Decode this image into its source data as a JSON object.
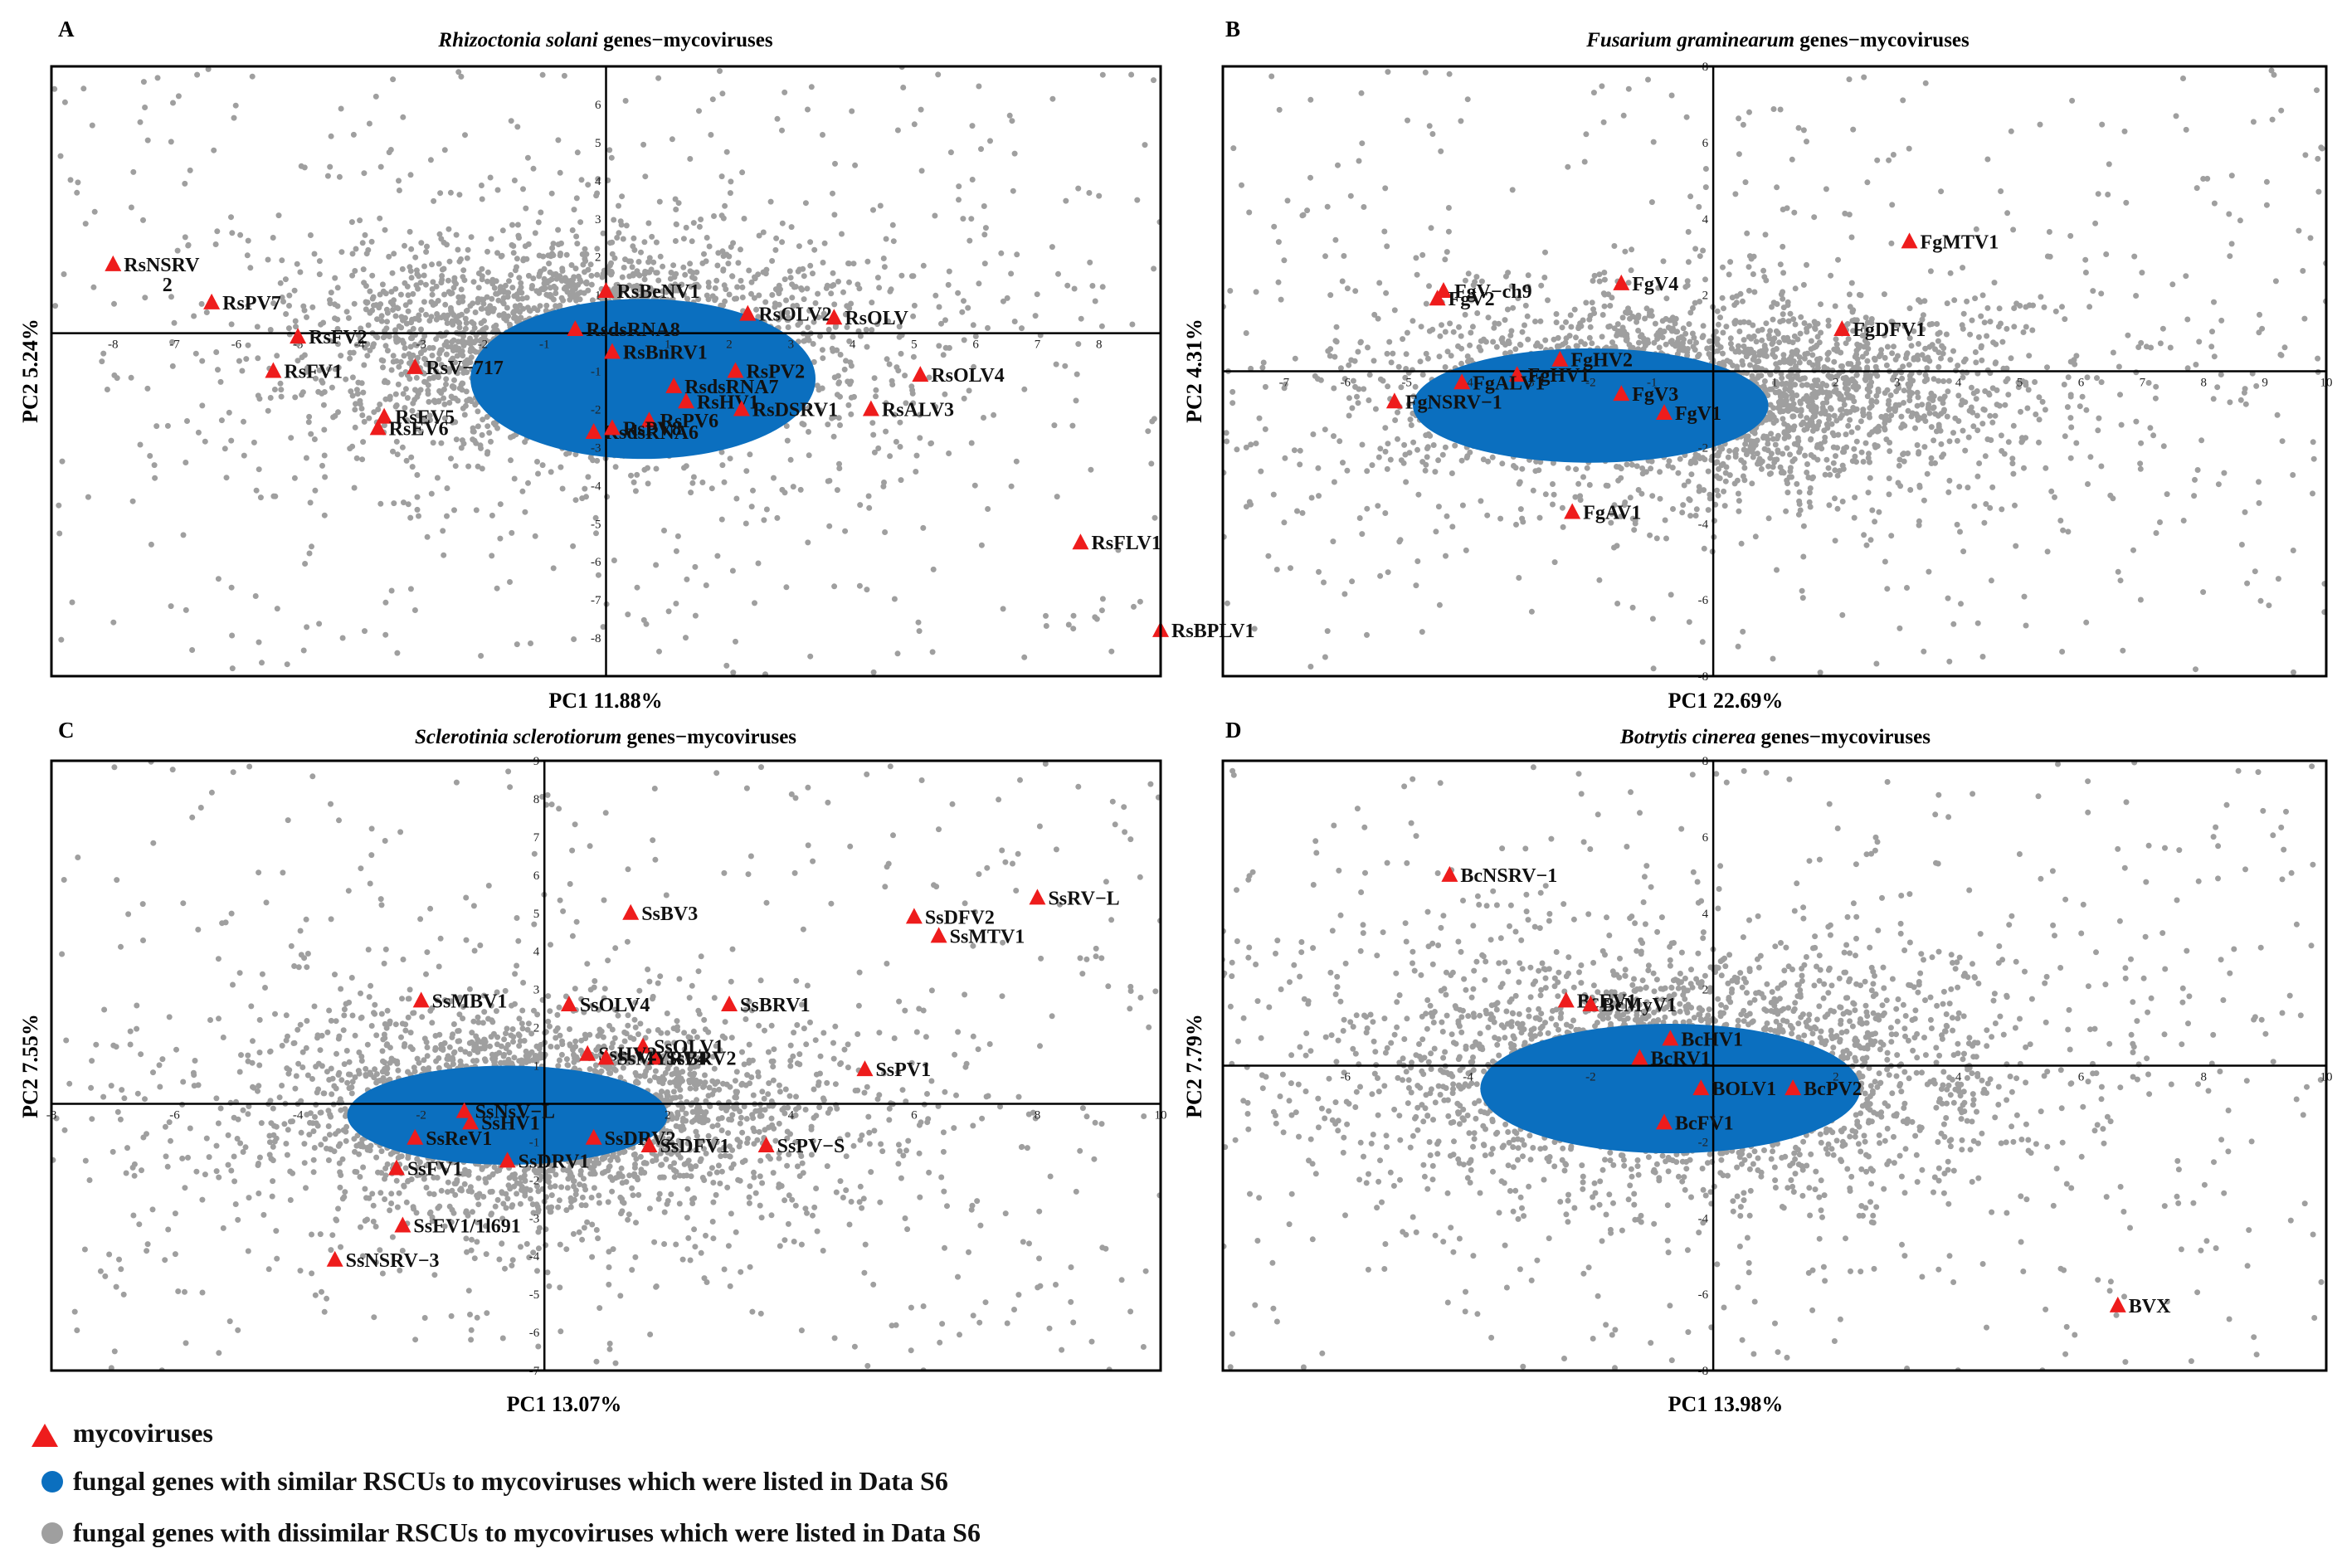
{
  "legend": {
    "virus": "mycoviruses",
    "similar": "fungal genes with similar RSCUs to mycoviruses which were listed in Data S6",
    "dissimilar": "fungal genes with dissimilar RSCUs to mycoviruses which were listed in Data S6"
  },
  "colors": {
    "virus": "#ee1c1c",
    "similar": "#0b6fbf",
    "dissimilar": "#9f9f9f"
  },
  "chart_data": [
    {
      "type": "scatter",
      "panel": "A",
      "title_species": "Rhizoctonia solani",
      "title_suffix": " genes−mycoviruses",
      "xlabel": "PC1 11.88%",
      "ylabel": "PC2 5.24%",
      "xlim": [
        -9,
        9
      ],
      "ylim": [
        -9,
        7
      ],
      "xticks": [
        -8,
        -7,
        -6,
        -5,
        -4,
        -3,
        -2,
        -1,
        1,
        2,
        3,
        4,
        5,
        6,
        7,
        8
      ],
      "yticks": [
        -8,
        -7,
        -6,
        -5,
        -4,
        -3,
        -2,
        -1,
        1,
        2,
        3,
        4,
        5,
        6
      ],
      "ellipse": {
        "cx": 0.6,
        "cy": -1.2,
        "rx": 2.8,
        "ry": 2.1
      },
      "cloud": {
        "cx": -0.3,
        "cy": -0.3,
        "sx": 2.8,
        "sy": 1.8
      },
      "viruses": [
        {
          "name": "RsNSRV",
          "x": -8.0,
          "y": 1.8
        },
        {
          "name": "RsPV7",
          "x": -6.4,
          "y": 0.8
        },
        {
          "name": "RsFV2",
          "x": -5.0,
          "y": -0.1
        },
        {
          "name": "RsFV1",
          "x": -5.4,
          "y": -1.0
        },
        {
          "name": "RsV−717",
          "x": -3.1,
          "y": -0.9
        },
        {
          "name": "RsEV5",
          "x": -3.6,
          "y": -2.2
        },
        {
          "name": "RsEV6",
          "x": -3.7,
          "y": -2.5
        },
        {
          "name": "RsBeNV1",
          "x": 0.0,
          "y": 1.1
        },
        {
          "name": "RsdsRNA8",
          "x": -0.5,
          "y": 0.1
        },
        {
          "name": "RsBnRV1",
          "x": 0.1,
          "y": -0.5
        },
        {
          "name": "RsdsRNA7",
          "x": 1.1,
          "y": -1.4
        },
        {
          "name": "RsHV1",
          "x": 1.3,
          "y": -1.8
        },
        {
          "name": "RsPV6",
          "x": 0.7,
          "y": -2.3
        },
        {
          "name": "RsdsRNA6",
          "x": -0.2,
          "y": -2.6
        },
        {
          "name": "RsPV8",
          "x": 0.1,
          "y": -2.5
        },
        {
          "name": "RsOLV2",
          "x": 2.3,
          "y": 0.5
        },
        {
          "name": "RsOLV",
          "x": 3.7,
          "y": 0.4
        },
        {
          "name": "RsPV2",
          "x": 2.1,
          "y": -1.0
        },
        {
          "name": "RsDSRV1",
          "x": 2.2,
          "y": -2.0
        },
        {
          "name": "RsOLV4",
          "x": 5.1,
          "y": -1.1
        },
        {
          "name": "RsALV3",
          "x": 4.3,
          "y": -2.0
        },
        {
          "name": "RsFLV1",
          "x": 7.7,
          "y": -5.5
        },
        {
          "name": "RsBPLV1",
          "x": 9.0,
          "y": -7.8
        }
      ],
      "annotations": [
        {
          "text": "2",
          "x": -7.2,
          "y": 1.1
        }
      ]
    },
    {
      "type": "scatter",
      "panel": "B",
      "title_species": "Fusarium graminearum",
      "title_suffix": " genes−mycoviruses",
      "xlabel": "PC1 22.69%",
      "ylabel": "PC2 4.31%",
      "xlim": [
        -8,
        10
      ],
      "ylim": [
        -8,
        8
      ],
      "xticks": [
        -7,
        -6,
        -5,
        -4,
        -3,
        -2,
        -1,
        1,
        2,
        3,
        4,
        5,
        6,
        7,
        8,
        9,
        10
      ],
      "yticks": [
        -8,
        -6,
        -4,
        -2,
        2,
        4,
        6,
        8
      ],
      "ellipse": {
        "cx": -2.0,
        "cy": -0.9,
        "rx": 2.9,
        "ry": 1.5
      },
      "cloud": {
        "cx": -0.2,
        "cy": -0.6,
        "sx": 3.2,
        "sy": 1.6
      },
      "viruses": [
        {
          "name": "FgV−ch9",
          "x": -4.4,
          "y": 2.1
        },
        {
          "name": "FgV2",
          "x": -4.5,
          "y": 1.9
        },
        {
          "name": "FgV4",
          "x": -1.5,
          "y": 2.3
        },
        {
          "name": "FgMTV1",
          "x": 3.2,
          "y": 3.4
        },
        {
          "name": "FgDFV1",
          "x": 2.1,
          "y": 1.1
        },
        {
          "name": "FgHV2",
          "x": -2.5,
          "y": 0.3
        },
        {
          "name": "FgHV1",
          "x": -3.2,
          "y": -0.1
        },
        {
          "name": "FgALV1",
          "x": -4.1,
          "y": -0.3
        },
        {
          "name": "FgNSRV−1",
          "x": -5.2,
          "y": -0.8
        },
        {
          "name": "FgV3",
          "x": -1.5,
          "y": -0.6
        },
        {
          "name": "FgV1",
          "x": -0.8,
          "y": -1.1
        },
        {
          "name": "FgAV1",
          "x": -2.3,
          "y": -3.7
        }
      ],
      "annotations": []
    },
    {
      "type": "scatter",
      "panel": "C",
      "title_species": "Sclerotinia sclerotiorum",
      "title_suffix": " genes−mycoviruses",
      "xlabel": "PC1 13.07%",
      "ylabel": "PC2 7.55%",
      "xlim": [
        -8,
        10
      ],
      "ylim": [
        -7,
        9
      ],
      "xticks": [
        -8,
        -6,
        -4,
        -2,
        2,
        4,
        6,
        8,
        10
      ],
      "yticks": [
        -7,
        -6,
        -5,
        -4,
        -3,
        -2,
        -1,
        1,
        2,
        3,
        4,
        5,
        6,
        7,
        8,
        9
      ],
      "ellipse": {
        "cx": -0.6,
        "cy": -0.3,
        "rx": 2.6,
        "ry": 1.3
      },
      "cloud": {
        "cx": 0.0,
        "cy": -0.3,
        "sx": 3.0,
        "sy": 1.8
      },
      "viruses": [
        {
          "name": "SsRV−L",
          "x": 8.0,
          "y": 5.4
        },
        {
          "name": "SsDFV2",
          "x": 6.0,
          "y": 4.9
        },
        {
          "name": "SsMTV1",
          "x": 6.4,
          "y": 4.4
        },
        {
          "name": "SsBV3",
          "x": 1.4,
          "y": 5.0
        },
        {
          "name": "SsMBV1",
          "x": -2.0,
          "y": 2.7
        },
        {
          "name": "SsOLV4",
          "x": 0.4,
          "y": 2.6
        },
        {
          "name": "SsBRV1",
          "x": 3.0,
          "y": 2.6
        },
        {
          "name": "SsOLV1",
          "x": 1.6,
          "y": 1.5
        },
        {
          "name": "SsBRV2",
          "x": 1.8,
          "y": 1.2
        },
        {
          "name": "SsHV2",
          "x": 0.7,
          "y": 1.3
        },
        {
          "name": "SsMYRV4",
          "x": 1.0,
          "y": 1.2
        },
        {
          "name": "SsPV1",
          "x": 5.2,
          "y": 0.9
        },
        {
          "name": "SsNsV−L",
          "x": -1.3,
          "y": -0.2
        },
        {
          "name": "SsHV1",
          "x": -1.2,
          "y": -0.5
        },
        {
          "name": "SsReV1",
          "x": -2.1,
          "y": -0.9
        },
        {
          "name": "SsDRV2",
          "x": 0.8,
          "y": -0.9
        },
        {
          "name": "SsFV1",
          "x": -2.4,
          "y": -1.7
        },
        {
          "name": "SsDRV1",
          "x": -0.6,
          "y": -1.5
        },
        {
          "name": "SsDFV1",
          "x": 1.7,
          "y": -1.1
        },
        {
          "name": "SsPV−S",
          "x": 3.6,
          "y": -1.1
        },
        {
          "name": "SsEV1/1l691",
          "x": -2.3,
          "y": -3.2
        },
        {
          "name": "SsNSRV−3",
          "x": -3.4,
          "y": -4.1
        }
      ],
      "annotations": []
    },
    {
      "type": "scatter",
      "panel": "D",
      "title_species": "Botrytis cinerea",
      "title_suffix": " genes−mycoviruses",
      "xlabel": "PC1 13.98%",
      "ylabel": "PC2 7.79%",
      "xlim": [
        -8,
        10
      ],
      "ylim": [
        -8,
        8
      ],
      "xticks": [
        -6,
        -4,
        -2,
        2,
        4,
        6,
        8,
        10
      ],
      "yticks": [
        -8,
        -6,
        -4,
        -2,
        2,
        4,
        6,
        8
      ],
      "ellipse": {
        "cx": -0.7,
        "cy": -0.6,
        "rx": 3.1,
        "ry": 1.7
      },
      "cloud": {
        "cx": -0.5,
        "cy": -0.2,
        "sx": 3.4,
        "sy": 2.0
      },
      "viruses": [
        {
          "name": "BcNSRV−1",
          "x": -4.3,
          "y": 5.0
        },
        {
          "name": "BcEV1",
          "x": -2.4,
          "y": 1.7
        },
        {
          "name": "BcMyV1",
          "x": -2.0,
          "y": 1.6
        },
        {
          "name": "BcHV1",
          "x": -0.7,
          "y": 0.7
        },
        {
          "name": "BcRV1",
          "x": -1.2,
          "y": 0.2
        },
        {
          "name": "BOLV1",
          "x": -0.2,
          "y": -0.6
        },
        {
          "name": "BcPV2",
          "x": 1.3,
          "y": -0.6
        },
        {
          "name": "BcFV1",
          "x": -0.8,
          "y": -1.5
        },
        {
          "name": "BVX",
          "x": 6.6,
          "y": -6.3
        }
      ],
      "annotations": []
    }
  ]
}
